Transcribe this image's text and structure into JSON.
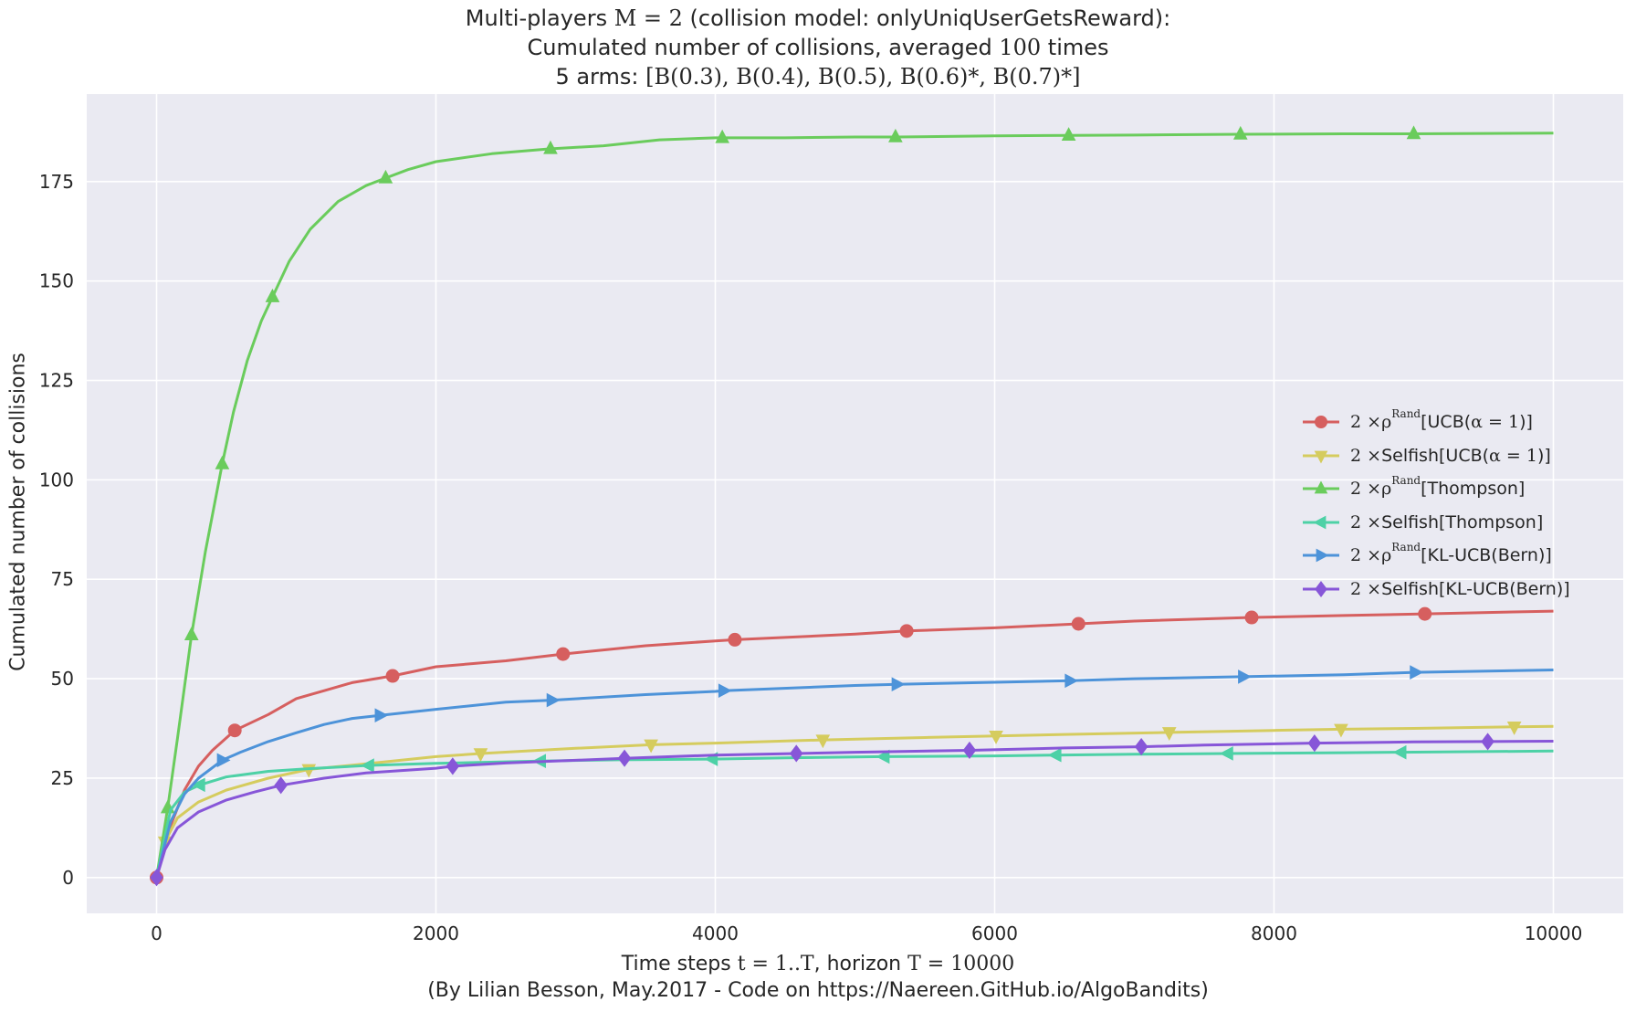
{
  "title_lines": [
    [
      "Multi-players ",
      "M = 2",
      " (collision model: onlyUniqUserGetsReward):"
    ],
    [
      "Cumulated number of collisions, averaged ",
      "100",
      " times"
    ],
    [
      "5 arms: ",
      "[B(0.3), B(0.4), B(0.5), B(0.6)*, B(0.7)*]",
      ""
    ]
  ],
  "xlabel": [
    "Time steps ",
    "t = 1..T",
    ", horizon ",
    "T = 10000"
  ],
  "credit": "(By Lilian Besson, May.2017 - Code on https://Naereen.GitHub.io/AlgoBandits)",
  "chart_data": {
    "type": "line",
    "xlabel": "Time steps t = 1..T, horizon T = 10000",
    "ylabel": "Cumulated number of collisions",
    "xlim": [
      -500,
      10500
    ],
    "ylim": [
      -9,
      197
    ],
    "xticks": [
      0,
      2000,
      4000,
      6000,
      8000,
      10000
    ],
    "yticks": [
      0,
      25,
      50,
      75,
      100,
      125,
      150,
      175
    ],
    "grid": true,
    "background": "#eaeaf2",
    "legend_position": "center-right",
    "series": [
      {
        "name": "2× ρ^Rand[UCB(α=1)]",
        "legend_parts": [
          "2 ×",
          " ρ",
          "Rand",
          "[UCB(",
          "α = 1",
          ")]"
        ],
        "color": "#d65f5f",
        "marker": "circle",
        "points": [
          [
            0,
            0
          ],
          [
            100,
            13
          ],
          [
            200,
            22
          ],
          [
            300,
            28
          ],
          [
            400,
            32
          ],
          [
            560,
            37
          ],
          [
            800,
            41
          ],
          [
            1000,
            45
          ],
          [
            1200,
            47
          ],
          [
            1400,
            49
          ],
          [
            1690,
            50.7
          ],
          [
            2000,
            53
          ],
          [
            2500,
            54.5
          ],
          [
            2910,
            56.2
          ],
          [
            3500,
            58.3
          ],
          [
            4000,
            59.5
          ],
          [
            4140,
            59.8
          ],
          [
            5000,
            61.2
          ],
          [
            5370,
            62
          ],
          [
            6000,
            62.8
          ],
          [
            6600,
            63.8
          ],
          [
            7000,
            64.5
          ],
          [
            7840,
            65.4
          ],
          [
            8500,
            65.9
          ],
          [
            9080,
            66.3
          ],
          [
            10000,
            67
          ]
        ],
        "markers_at": [
          0,
          560,
          1690,
          2910,
          4140,
          5370,
          6600,
          7840,
          9080
        ]
      },
      {
        "name": "2× Selfish[UCB(α=1)]",
        "legend_parts": [
          "2 ×",
          " Selfish[UCB(",
          "α = 1",
          ")]"
        ],
        "color": "#d5cc5e",
        "marker": "triangle-down",
        "points": [
          [
            0,
            0
          ],
          [
            60,
            9
          ],
          [
            150,
            15
          ],
          [
            300,
            19
          ],
          [
            500,
            22
          ],
          [
            800,
            25
          ],
          [
            1090,
            27.2
          ],
          [
            1500,
            28.6
          ],
          [
            2000,
            30.4
          ],
          [
            2320,
            31.2
          ],
          [
            3000,
            32.5
          ],
          [
            3540,
            33.4
          ],
          [
            4000,
            33.8
          ],
          [
            4770,
            34.6
          ],
          [
            5500,
            35.2
          ],
          [
            6010,
            35.6
          ],
          [
            6500,
            36
          ],
          [
            7250,
            36.5
          ],
          [
            8000,
            37
          ],
          [
            8480,
            37.3
          ],
          [
            9000,
            37.5
          ],
          [
            9720,
            37.9
          ],
          [
            10000,
            38
          ]
        ],
        "markers_at": [
          60,
          1090,
          2320,
          3540,
          4770,
          6010,
          7250,
          8480,
          9720
        ]
      },
      {
        "name": "2× ρ^Rand[Thompson]",
        "legend_parts": [
          "2 ×",
          " ρ",
          "Rand",
          "[Thompson]",
          "",
          ""
        ],
        "color": "#6acc5c",
        "marker": "triangle-up",
        "points": [
          [
            0,
            0
          ],
          [
            80,
            17.5
          ],
          [
            150,
            35
          ],
          [
            250,
            61
          ],
          [
            350,
            82
          ],
          [
            470,
            104
          ],
          [
            550,
            117
          ],
          [
            650,
            130
          ],
          [
            750,
            140
          ],
          [
            830,
            146
          ],
          [
            950,
            155
          ],
          [
            1100,
            163
          ],
          [
            1300,
            170
          ],
          [
            1500,
            174
          ],
          [
            1650,
            176
          ],
          [
            1800,
            178
          ],
          [
            2000,
            180
          ],
          [
            2400,
            182
          ],
          [
            2800,
            183.2
          ],
          [
            3200,
            184
          ],
          [
            3600,
            185.5
          ],
          [
            4000,
            186
          ],
          [
            4500,
            186
          ],
          [
            5000,
            186.2
          ],
          [
            5300,
            186.2
          ],
          [
            6000,
            186.5
          ],
          [
            6530,
            186.6
          ],
          [
            7000,
            186.7
          ],
          [
            7760,
            186.9
          ],
          [
            8500,
            187
          ],
          [
            9000,
            187
          ],
          [
            10000,
            187.2
          ]
        ],
        "markers_at": [
          80,
          250,
          470,
          830,
          1640,
          2820,
          4050,
          5290,
          6530,
          7760,
          9000
        ]
      },
      {
        "name": "2× Selfish[Thompson]",
        "legend_parts": [
          "2 ×",
          " Selfish[Thompson]",
          "",
          ""
        ],
        "color": "#4dd1a6",
        "marker": "triangle-left",
        "points": [
          [
            0,
            0
          ],
          [
            100,
            17
          ],
          [
            200,
            21.5
          ],
          [
            310,
            23.3
          ],
          [
            500,
            25.3
          ],
          [
            800,
            26.7
          ],
          [
            1100,
            27.4
          ],
          [
            1520,
            28.2
          ],
          [
            2000,
            28.7
          ],
          [
            2750,
            29.3
          ],
          [
            3300,
            29.6
          ],
          [
            3980,
            29.8
          ],
          [
            4500,
            30.1
          ],
          [
            5200,
            30.4
          ],
          [
            6000,
            30.6
          ],
          [
            6440,
            30.8
          ],
          [
            7000,
            31
          ],
          [
            7670,
            31.2
          ],
          [
            8500,
            31.4
          ],
          [
            8910,
            31.5
          ],
          [
            10000,
            31.8
          ]
        ],
        "markers_at": [
          310,
          1520,
          2750,
          3980,
          5210,
          6440,
          7670,
          8910
        ]
      },
      {
        "name": "2× ρ^Rand[KL-UCB(Bern)]",
        "legend_parts": [
          "2 ×",
          " ρ",
          "Rand",
          "[KL-UCB(Bern)]",
          "",
          ""
        ],
        "color": "#4d93d9",
        "marker": "triangle-right",
        "points": [
          [
            0,
            0
          ],
          [
            100,
            14
          ],
          [
            200,
            21
          ],
          [
            300,
            25
          ],
          [
            470,
            29.5
          ],
          [
            600,
            31.5
          ],
          [
            800,
            34.2
          ],
          [
            1000,
            36.4
          ],
          [
            1200,
            38.5
          ],
          [
            1400,
            40
          ],
          [
            1600,
            40.8
          ],
          [
            2000,
            42.3
          ],
          [
            2500,
            44.1
          ],
          [
            2830,
            44.6
          ],
          [
            3500,
            46
          ],
          [
            4000,
            46.8
          ],
          [
            4060,
            47
          ],
          [
            5000,
            48.3
          ],
          [
            5300,
            48.6
          ],
          [
            6000,
            49.1
          ],
          [
            6540,
            49.5
          ],
          [
            7000,
            50
          ],
          [
            7780,
            50.5
          ],
          [
            8500,
            51
          ],
          [
            9010,
            51.6
          ],
          [
            10000,
            52.2
          ]
        ],
        "markers_at": [
          470,
          1600,
          2830,
          4060,
          5300,
          6540,
          7780,
          9010
        ]
      },
      {
        "name": "2× Selfish[KL-UCB(Bern)]",
        "legend_parts": [
          "2 ×",
          " Selfish[KL-UCB(Bern)]",
          "",
          ""
        ],
        "color": "#8756d8",
        "marker": "diamond",
        "points": [
          [
            0,
            0
          ],
          [
            60,
            7
          ],
          [
            150,
            12.5
          ],
          [
            300,
            16.5
          ],
          [
            500,
            19.5
          ],
          [
            700,
            21.5
          ],
          [
            890,
            23.2
          ],
          [
            1200,
            25
          ],
          [
            1500,
            26.3
          ],
          [
            2000,
            27.5
          ],
          [
            2120,
            28
          ],
          [
            2500,
            28.8
          ],
          [
            3000,
            29.5
          ],
          [
            3350,
            30
          ],
          [
            4000,
            30.8
          ],
          [
            4580,
            31.2
          ],
          [
            5000,
            31.5
          ],
          [
            5820,
            32
          ],
          [
            6500,
            32.6
          ],
          [
            7050,
            32.9
          ],
          [
            7500,
            33.3
          ],
          [
            8290,
            33.8
          ],
          [
            9000,
            34.1
          ],
          [
            9530,
            34.2
          ],
          [
            10000,
            34.3
          ]
        ],
        "markers_at": [
          0,
          890,
          2120,
          3350,
          4580,
          5820,
          7050,
          8290,
          9530
        ]
      }
    ]
  }
}
